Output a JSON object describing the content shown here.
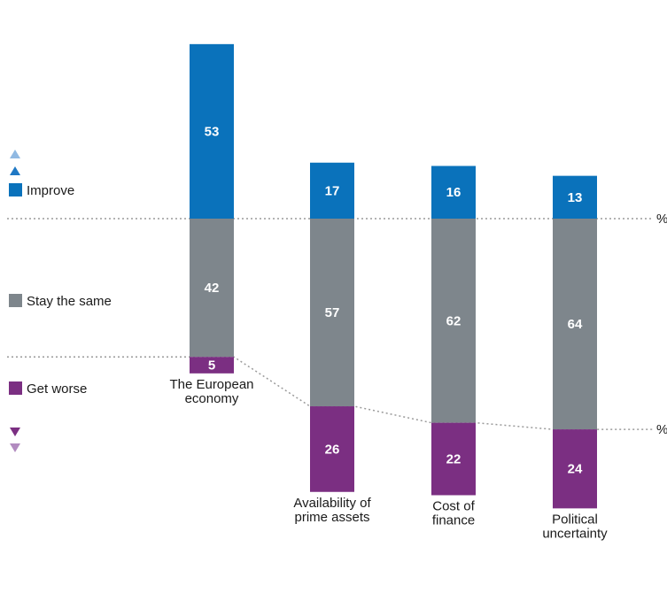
{
  "chart_data": {
    "type": "bar",
    "stacked": true,
    "categories": [
      [
        "The European",
        "economy"
      ],
      [
        "Availability of",
        "prime assets"
      ],
      [
        "Cost of",
        "finance"
      ],
      [
        "Political",
        "uncertainty"
      ]
    ],
    "series": [
      {
        "name": "Improve",
        "values": [
          53,
          17,
          16,
          13
        ],
        "color": "#0a72bb"
      },
      {
        "name": "Stay the same",
        "values": [
          42,
          57,
          62,
          64
        ],
        "color": "#7e868c"
      },
      {
        "name": "Get worse",
        "values": [
          5,
          26,
          22,
          24
        ],
        "color": "#7b2f82"
      }
    ],
    "percent_marker": "%",
    "legend_placement": "left",
    "ylim": [
      0,
      100
    ]
  },
  "colors": {
    "arrow_up_light": "#90b9e2",
    "arrow_up_dark": "#1f78c4",
    "arrow_down_dark": "#7b2f82",
    "arrow_down_light": "#b28bc0",
    "dotted_line": "#9a9a9a"
  }
}
